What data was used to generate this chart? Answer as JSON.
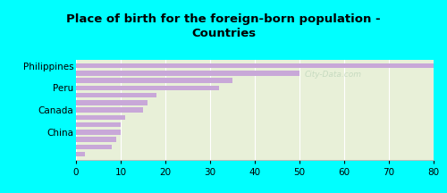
{
  "title": "Place of birth for the foreign-born population -\nCountries",
  "background_color": "#00FFFF",
  "plot_bg_color": "#e8f0d8",
  "bar_color": "#c8a8d8",
  "xlim": [
    0,
    80
  ],
  "xticks": [
    0,
    10,
    20,
    30,
    40,
    50,
    60,
    70,
    80
  ],
  "values": [
    80,
    50,
    35,
    32,
    18,
    16,
    15,
    11,
    10,
    10,
    9,
    8,
    2
  ],
  "label_indices": [
    0,
    3,
    6,
    9
  ],
  "label_names": [
    "Philippines",
    "Peru",
    "Canada",
    "China"
  ],
  "title_fontsize": 9.5,
  "tick_fontsize": 7.5,
  "watermark": "City-Data.com",
  "watermark_color": "#b0ccb0",
  "watermark_alpha": 0.6
}
